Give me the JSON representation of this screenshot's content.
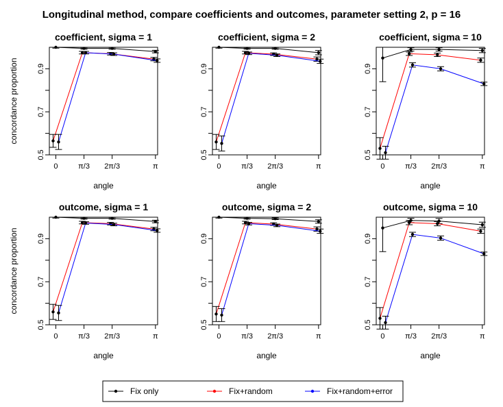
{
  "figure": {
    "title": "Longitudinal method, compare coefficients and outcomes, parameter setting 2, p = 16"
  },
  "chart_data": [
    {
      "type": "line",
      "title": "coefficient, sigma = 1",
      "x_ticks": [
        "0",
        "π/3",
        "2π/3",
        "π"
      ],
      "xlabel": "angle",
      "ylabel": "concordance proportion",
      "ylim": [
        0.5,
        1.0
      ],
      "y_ticks": [
        "0.5",
        "0.7",
        "0.9"
      ],
      "series": [
        {
          "name": "Fix only",
          "color": "#000000",
          "values": [
            1.0,
            0.995,
            0.995,
            0.98
          ],
          "err": [
            0.004,
            0.004,
            0.004,
            0.006
          ]
        },
        {
          "name": "Fix+random",
          "color": "#ff0000",
          "values": [
            0.565,
            0.975,
            0.97,
            0.945
          ],
          "err": [
            0.03,
            0.006,
            0.006,
            0.008
          ]
        },
        {
          "name": "Fix+random+error",
          "color": "#0000ff",
          "values": [
            0.56,
            0.975,
            0.968,
            0.938
          ],
          "err": [
            0.035,
            0.006,
            0.006,
            0.008
          ]
        }
      ]
    },
    {
      "type": "line",
      "title": "coefficient, sigma = 2",
      "x_ticks": [
        "0",
        "π/3",
        "2π/3",
        "π"
      ],
      "xlabel": "angle",
      "ylabel": "",
      "ylim": [
        0.5,
        1.0
      ],
      "y_ticks": [
        "0.5",
        "0.7",
        "0.9"
      ],
      "series": [
        {
          "name": "Fix only",
          "color": "#000000",
          "values": [
            1.0,
            0.995,
            0.995,
            0.975
          ],
          "err": [
            0.004,
            0.004,
            0.004,
            0.01
          ]
        },
        {
          "name": "Fix+random",
          "color": "#ff0000",
          "values": [
            0.56,
            0.975,
            0.968,
            0.945
          ],
          "err": [
            0.035,
            0.006,
            0.006,
            0.01
          ]
        },
        {
          "name": "Fix+random+error",
          "color": "#0000ff",
          "values": [
            0.553,
            0.972,
            0.963,
            0.935
          ],
          "err": [
            0.035,
            0.006,
            0.006,
            0.01
          ]
        }
      ]
    },
    {
      "type": "line",
      "title": "coefficient, sigma = 10",
      "x_ticks": [
        "0",
        "π/3",
        "2π/3",
        "π"
      ],
      "xlabel": "angle",
      "ylabel": "",
      "ylim": [
        0.5,
        1.0
      ],
      "y_ticks": [
        "0.5",
        "0.7",
        "0.9"
      ],
      "series": [
        {
          "name": "Fix only",
          "color": "#000000",
          "values": [
            0.95,
            0.99,
            0.99,
            0.985
          ],
          "err": [
            0.11,
            0.008,
            0.008,
            0.01
          ]
        },
        {
          "name": "Fix+random",
          "color": "#ff0000",
          "values": [
            0.53,
            0.97,
            0.965,
            0.94
          ],
          "err": [
            0.05,
            0.008,
            0.008,
            0.01
          ]
        },
        {
          "name": "Fix+random+error",
          "color": "#0000ff",
          "values": [
            0.51,
            0.918,
            0.9,
            0.83
          ],
          "err": [
            0.03,
            0.01,
            0.01,
            0.008
          ]
        }
      ]
    },
    {
      "type": "line",
      "title": "outcome, sigma = 1",
      "x_ticks": [
        "0",
        "π/3",
        "2π/3",
        "π"
      ],
      "xlabel": "angle",
      "ylabel": "concordance proportion",
      "ylim": [
        0.5,
        1.0
      ],
      "y_ticks": [
        "0.5",
        "0.7",
        "0.9"
      ],
      "series": [
        {
          "name": "Fix only",
          "color": "#000000",
          "values": [
            1.0,
            0.995,
            0.995,
            0.98
          ],
          "err": [
            0.004,
            0.004,
            0.004,
            0.006
          ]
        },
        {
          "name": "Fix+random",
          "color": "#ff0000",
          "values": [
            0.56,
            0.975,
            0.97,
            0.945
          ],
          "err": [
            0.035,
            0.006,
            0.006,
            0.008
          ]
        },
        {
          "name": "Fix+random+error",
          "color": "#0000ff",
          "values": [
            0.555,
            0.973,
            0.966,
            0.938
          ],
          "err": [
            0.035,
            0.006,
            0.006,
            0.008
          ]
        }
      ]
    },
    {
      "type": "line",
      "title": "outcome, sigma = 2",
      "x_ticks": [
        "0",
        "π/3",
        "2π/3",
        "π"
      ],
      "xlabel": "angle",
      "ylabel": "",
      "ylim": [
        0.5,
        1.0
      ],
      "y_ticks": [
        "0.5",
        "0.7",
        "0.9"
      ],
      "series": [
        {
          "name": "Fix only",
          "color": "#000000",
          "values": [
            1.0,
            0.995,
            0.993,
            0.98
          ],
          "err": [
            0.004,
            0.004,
            0.004,
            0.008
          ]
        },
        {
          "name": "Fix+random",
          "color": "#ff0000",
          "values": [
            0.55,
            0.975,
            0.968,
            0.945
          ],
          "err": [
            0.035,
            0.006,
            0.006,
            0.01
          ]
        },
        {
          "name": "Fix+random+error",
          "color": "#0000ff",
          "values": [
            0.545,
            0.97,
            0.962,
            0.935
          ],
          "err": [
            0.03,
            0.006,
            0.006,
            0.01
          ]
        }
      ]
    },
    {
      "type": "line",
      "title": "outcome, sigma = 10",
      "x_ticks": [
        "0",
        "π/3",
        "2π/3",
        "π"
      ],
      "xlabel": "angle",
      "ylabel": "",
      "ylim": [
        0.5,
        1.0
      ],
      "y_ticks": [
        "0.5",
        "0.7",
        "0.9"
      ],
      "series": [
        {
          "name": "Fix only",
          "color": "#000000",
          "values": [
            0.95,
            0.985,
            0.982,
            0.965
          ],
          "err": [
            0.11,
            0.01,
            0.012,
            0.012
          ]
        },
        {
          "name": "Fix+random",
          "color": "#ff0000",
          "values": [
            0.53,
            0.975,
            0.97,
            0.935
          ],
          "err": [
            0.05,
            0.01,
            0.01,
            0.01
          ]
        },
        {
          "name": "Fix+random+error",
          "color": "#0000ff",
          "values": [
            0.51,
            0.92,
            0.903,
            0.83
          ],
          "err": [
            0.03,
            0.01,
            0.01,
            0.008
          ]
        }
      ]
    }
  ],
  "legend": {
    "items": [
      {
        "label": "Fix only",
        "color": "#000000"
      },
      {
        "label": "Fix+random",
        "color": "#ff0000"
      },
      {
        "label": "Fix+random+error",
        "color": "#0000ff"
      }
    ]
  }
}
